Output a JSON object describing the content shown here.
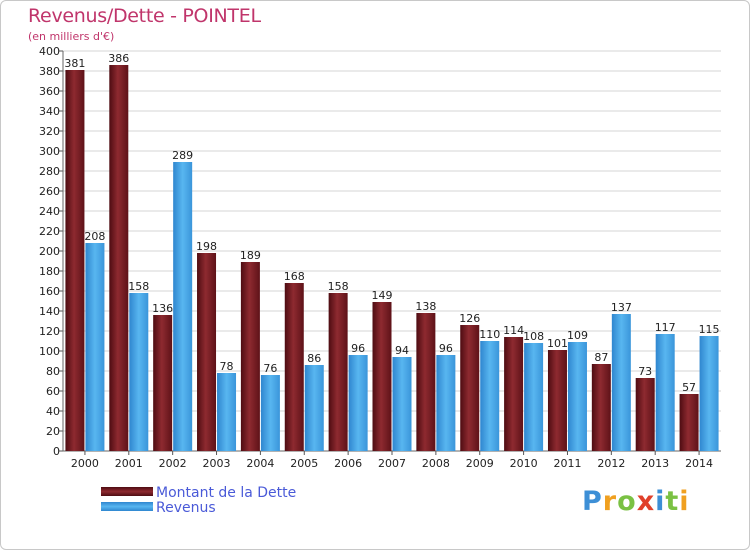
{
  "chart_data": {
    "type": "bar",
    "title": "Revenus/Dette - POINTEL",
    "subtitle": "(en milliers d'€)",
    "categories": [
      "2000",
      "2001",
      "2002",
      "2003",
      "2004",
      "2005",
      "2006",
      "2007",
      "2008",
      "2009",
      "2010",
      "2011",
      "2012",
      "2013",
      "2014"
    ],
    "series": [
      {
        "name": "Montant de la Dette",
        "color": "#7a1f25",
        "values": [
          381,
          386,
          136,
          198,
          189,
          168,
          158,
          149,
          138,
          126,
          114,
          101,
          87,
          73,
          57
        ]
      },
      {
        "name": "Revenus",
        "color": "#3b9de0",
        "values": [
          208,
          158,
          289,
          78,
          76,
          86,
          96,
          94,
          96,
          110,
          108,
          109,
          137,
          117,
          115
        ]
      }
    ],
    "ylim": [
      0,
      400
    ],
    "ytick_step": 20,
    "grid": true
  },
  "brand": {
    "letters": [
      "P",
      "r",
      "o",
      "x",
      "i",
      "t",
      "i"
    ],
    "colors": [
      "#3d8fd6",
      "#f0a020",
      "#7ac143",
      "#e0402a",
      "#3d8fd6",
      "#7ac143",
      "#f0a020"
    ]
  }
}
